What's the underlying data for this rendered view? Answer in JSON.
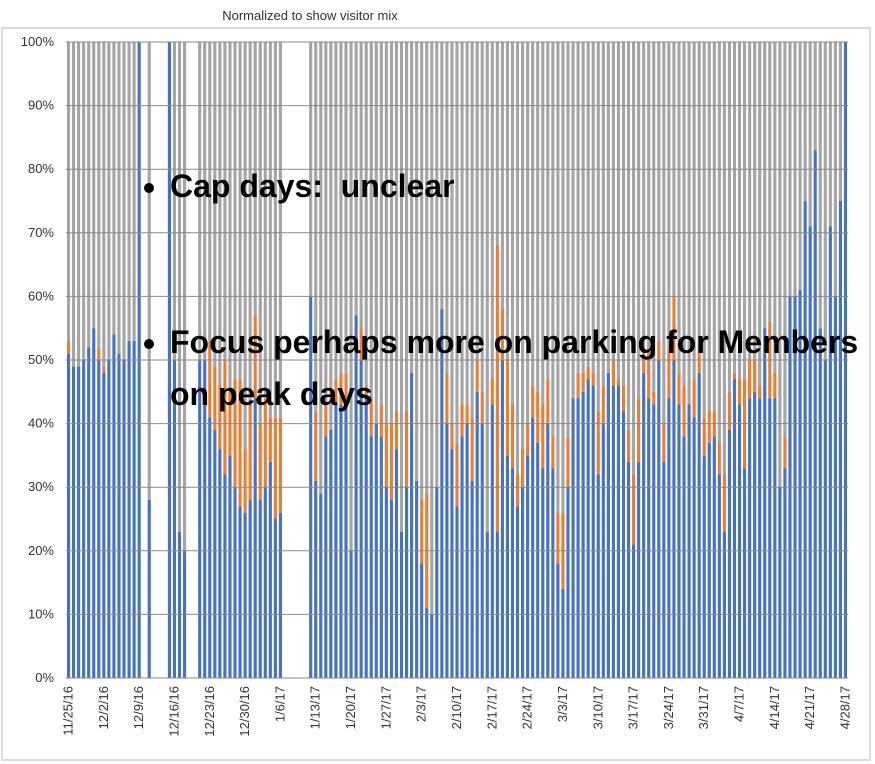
{
  "chart_data": {
    "type": "stacked_bar_100",
    "title": "Normalized to show visitor mix",
    "annotations": [
      "Cap days:  unclear",
      "Focus perhaps more on parking for Members on peak days"
    ],
    "categories": [
      "11/25/16",
      null,
      null,
      null,
      null,
      null,
      null,
      "12/2/16",
      null,
      null,
      null,
      null,
      null,
      null,
      "12/9/16",
      null,
      null,
      null,
      null,
      null,
      null,
      "12/16/16",
      null,
      null,
      null,
      null,
      null,
      null,
      "12/23/16",
      null,
      null,
      null,
      null,
      null,
      null,
      "12/30/16",
      null,
      null,
      null,
      null,
      null,
      null,
      "1/6/17",
      null,
      null,
      null,
      null,
      null,
      null,
      "1/13/17",
      null,
      null,
      null,
      null,
      null,
      null,
      "1/20/17",
      null,
      null,
      null,
      null,
      null,
      null,
      "1/27/17",
      null,
      null,
      null,
      null,
      null,
      null,
      "2/3/17",
      null,
      null,
      null,
      null,
      null,
      null,
      "2/10/17",
      null,
      null,
      null,
      null,
      null,
      null,
      "2/17/17",
      null,
      null,
      null,
      null,
      null,
      null,
      "2/24/17",
      null,
      null,
      null,
      null,
      null,
      null,
      "3/3/17",
      null,
      null,
      null,
      null,
      null,
      null,
      "3/10/17",
      null,
      null,
      null,
      null,
      null,
      null,
      "3/17/17",
      null,
      null,
      null,
      null,
      null,
      null,
      "3/24/17",
      null,
      null,
      null,
      null,
      null,
      null,
      "3/31/17",
      null,
      null,
      null,
      null,
      null,
      null,
      "4/7/17",
      null,
      null,
      null,
      null,
      null,
      null,
      "4/14/17",
      null,
      null,
      null,
      null,
      null,
      null,
      "4/21/17",
      null,
      null,
      null,
      null,
      null,
      null,
      "4/28/17"
    ],
    "series": [
      {
        "color": "#4472c4",
        "values": [
          51,
          49,
          49,
          50,
          52,
          55,
          50,
          48,
          50,
          54,
          51,
          50,
          53,
          53,
          100,
          null,
          28,
          null,
          null,
          null,
          100,
          50,
          23,
          20,
          null,
          null,
          50,
          50,
          41,
          39,
          36,
          32,
          35,
          30,
          27,
          26,
          28,
          44,
          28,
          30,
          34,
          25,
          26,
          null,
          null,
          null,
          null,
          null,
          60,
          31,
          29,
          38,
          39,
          43,
          43,
          44,
          20,
          57,
          50,
          44,
          38,
          40,
          38,
          30,
          28,
          36,
          23,
          30,
          48,
          31,
          18,
          11,
          10,
          30,
          58,
          40,
          36,
          27,
          38,
          40,
          31,
          45,
          40,
          23,
          43,
          23,
          50,
          35,
          33,
          27,
          30,
          35,
          41,
          37,
          33,
          40,
          33,
          18,
          14,
          30,
          44,
          44,
          45,
          47,
          46,
          32,
          40,
          48,
          46,
          46,
          42,
          34,
          21,
          34,
          48,
          44,
          43,
          50,
          34,
          44,
          50,
          43,
          38,
          43,
          41,
          48,
          35,
          37,
          38,
          32,
          23,
          39,
          47,
          43,
          33,
          44,
          45,
          44,
          55,
          44,
          44,
          30,
          33,
          60,
          60,
          61,
          75,
          71,
          83,
          55,
          50,
          71,
          60,
          75,
          100
        ]
      },
      {
        "color": "#ed7d31",
        "values": [
          2,
          0,
          0,
          0,
          0,
          0,
          2,
          1,
          0,
          0,
          0,
          0,
          0,
          0,
          0,
          null,
          0,
          null,
          null,
          null,
          0,
          0,
          0,
          0,
          null,
          null,
          0,
          0,
          12,
          10,
          10,
          18,
          10,
          17,
          20,
          10,
          15,
          13,
          12,
          14,
          7,
          16,
          15,
          null,
          null,
          null,
          null,
          null,
          0,
          11,
          0,
          5,
          0,
          4,
          5,
          4,
          0,
          0,
          5,
          2,
          6,
          0,
          5,
          10,
          12,
          6,
          0,
          12,
          0,
          0,
          10,
          18,
          0,
          0,
          0,
          8,
          4,
          10,
          5,
          3,
          10,
          5,
          5,
          0,
          4,
          45,
          8,
          15,
          10,
          5,
          6,
          5,
          5,
          8,
          10,
          7,
          5,
          8,
          12,
          8,
          0,
          4,
          3,
          2,
          2,
          10,
          6,
          0,
          4,
          1,
          4,
          5,
          11,
          10,
          3,
          8,
          2,
          3,
          6,
          8,
          10,
          5,
          8,
          0,
          6,
          4,
          6,
          5,
          4,
          5,
          9,
          6,
          1,
          4,
          14,
          6,
          5,
          2,
          0,
          12,
          4,
          0,
          5,
          0,
          0,
          0,
          0,
          0,
          0,
          0,
          0,
          0,
          0,
          0,
          0
        ]
      },
      {
        "color": "#a5a5a5",
        "values": [
          47,
          51,
          51,
          50,
          48,
          45,
          48,
          51,
          50,
          46,
          49,
          50,
          47,
          47,
          0,
          null,
          72,
          null,
          null,
          null,
          0,
          50,
          77,
          80,
          null,
          null,
          50,
          50,
          47,
          51,
          54,
          50,
          55,
          53,
          53,
          64,
          57,
          43,
          60,
          56,
          59,
          59,
          59,
          null,
          null,
          null,
          null,
          null,
          40,
          58,
          71,
          57,
          61,
          53,
          52,
          52,
          80,
          43,
          45,
          54,
          56,
          60,
          57,
          60,
          60,
          58,
          77,
          58,
          52,
          69,
          72,
          71,
          90,
          70,
          42,
          52,
          60,
          63,
          57,
          57,
          59,
          50,
          55,
          77,
          53,
          32,
          42,
          50,
          57,
          68,
          64,
          60,
          54,
          55,
          57,
          53,
          62,
          74,
          74,
          62,
          56,
          52,
          52,
          51,
          52,
          58,
          54,
          52,
          50,
          53,
          54,
          61,
          68,
          56,
          49,
          48,
          55,
          47,
          60,
          48,
          40,
          52,
          54,
          57,
          53,
          48,
          59,
          58,
          58,
          63,
          68,
          55,
          52,
          53,
          53,
          50,
          50,
          54,
          45,
          44,
          52,
          70,
          62,
          40,
          40,
          39,
          25,
          29,
          17,
          45,
          50,
          29,
          40,
          25,
          0
        ]
      }
    ],
    "ylim": [
      0,
      100
    ],
    "yticks": [
      {
        "value": 0,
        "label": "0%"
      },
      {
        "value": 10,
        "label": "10%"
      },
      {
        "value": 20,
        "label": "20%"
      },
      {
        "value": 30,
        "label": "30%"
      },
      {
        "value": 40,
        "label": "40%"
      },
      {
        "value": 50,
        "label": "50%"
      },
      {
        "value": 60,
        "label": "60%"
      },
      {
        "value": 70,
        "label": "70%"
      },
      {
        "value": 80,
        "label": "80%"
      },
      {
        "value": 90,
        "label": "90%"
      },
      {
        "value": 100,
        "label": "100%"
      }
    ],
    "grid": true
  }
}
